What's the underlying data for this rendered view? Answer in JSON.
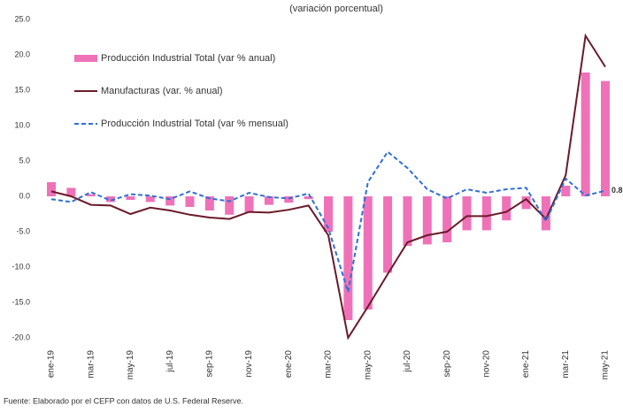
{
  "chart_data": {
    "type": "combo",
    "subtitle": "(variación porcentual)",
    "categories": [
      "ene-19",
      null,
      "mar-19",
      null,
      "may-19",
      null,
      "jul-19",
      null,
      "sep-19",
      null,
      "nov-19",
      null,
      "ene-20",
      null,
      "mar-20",
      null,
      "may-20",
      null,
      "jul-20",
      null,
      "sep-20",
      null,
      "nov-20",
      null,
      "ene-21",
      null,
      "mar-21",
      null,
      "may-21"
    ],
    "series": [
      {
        "name": "Producción Industrial Total (var % anual)",
        "type": "bar",
        "color": "#ef72b9",
        "values": [
          2.0,
          1.2,
          0.3,
          -0.8,
          -0.5,
          -0.8,
          -1.3,
          -1.5,
          -2.0,
          -2.6,
          -2.3,
          -1.2,
          -0.9,
          -0.4,
          -5.0,
          -17.5,
          -16.0,
          -10.8,
          -7.0,
          -6.8,
          -6.5,
          -4.8,
          -4.8,
          -3.4,
          -1.8,
          -4.8,
          1.5,
          17.5,
          16.3
        ]
      },
      {
        "name": "Manufacturas (var. % anual)",
        "type": "line",
        "color": "#6b1a2a",
        "values": [
          0.7,
          0.0,
          -1.2,
          -1.3,
          -2.5,
          -1.6,
          -2.0,
          -2.6,
          -3.0,
          -3.2,
          -2.2,
          -2.3,
          -1.9,
          -1.3,
          -5.5,
          -20.0,
          -15.6,
          -11.0,
          -6.5,
          -5.5,
          -5.0,
          -2.8,
          -2.8,
          -2.2,
          -0.4,
          -3.2,
          3.0,
          22.7,
          18.3
        ]
      },
      {
        "name": "Producción Industrial Total (var % mensual)",
        "type": "line",
        "dashed": true,
        "color": "#2f6fd6",
        "values": [
          -0.4,
          -0.8,
          0.6,
          -0.6,
          0.3,
          0.1,
          -0.4,
          0.7,
          -0.3,
          -0.7,
          0.5,
          -0.1,
          -0.3,
          0.4,
          -4.5,
          -13.5,
          2.0,
          6.3,
          4.0,
          1.0,
          -0.3,
          1.0,
          0.5,
          1.0,
          1.2,
          -3.5,
          2.5,
          0.1,
          0.8
        ],
        "value_labels": [
          null,
          null,
          null,
          null,
          null,
          null,
          null,
          null,
          null,
          null,
          null,
          null,
          null,
          null,
          null,
          null,
          null,
          null,
          null,
          null,
          null,
          null,
          null,
          null,
          null,
          null,
          null,
          null,
          "0.8"
        ]
      }
    ],
    "ylim": [
      -20,
      25
    ],
    "yticks": [
      {
        "value": -20,
        "label": "-20.0"
      },
      {
        "value": -15,
        "label": "-15.0"
      },
      {
        "value": -10,
        "label": "-10.0"
      },
      {
        "value": -5,
        "label": "-5.0"
      },
      {
        "value": 0,
        "label": "0.0"
      },
      {
        "value": 5,
        "label": "5.0"
      },
      {
        "value": 10,
        "label": "10.0"
      },
      {
        "value": 15,
        "label": "15.0"
      },
      {
        "value": 20,
        "label": "20.0"
      },
      {
        "value": 25,
        "label": "25.0"
      }
    ],
    "source": "Fuente: Elaborado por el CEFP con datos de U.S. Federal Reserve."
  }
}
